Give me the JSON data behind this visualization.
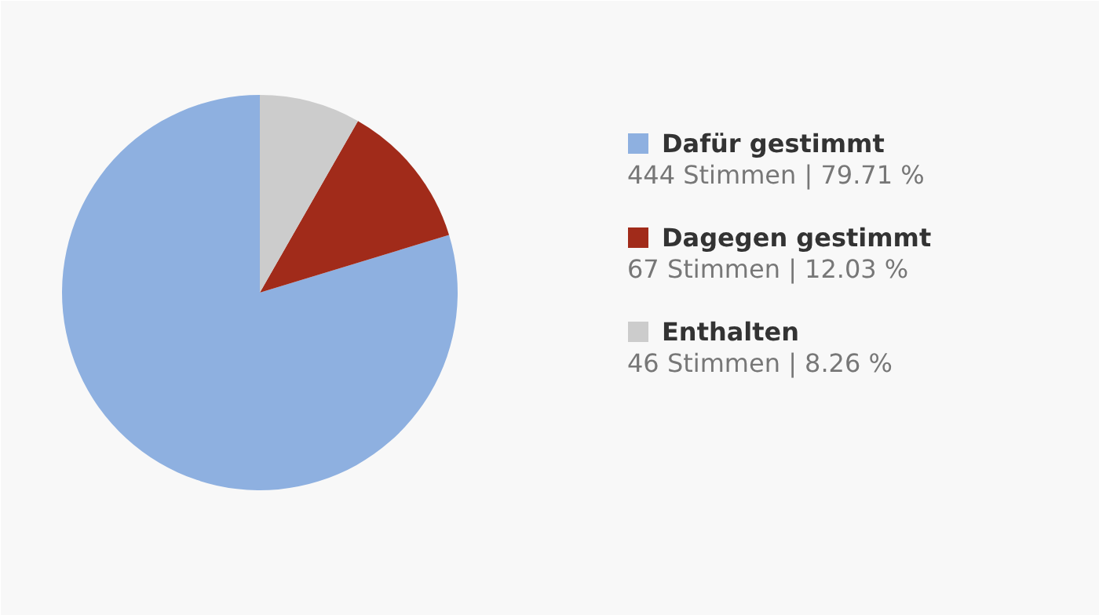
{
  "chart_data": {
    "type": "pie",
    "categories": [
      "Dafür gestimmt",
      "Dagegen gestimmt",
      "Enthalten"
    ],
    "values": [
      444,
      67,
      46
    ],
    "colors": [
      "#8eb0e0",
      "#a12b1a",
      "#cccccc"
    ],
    "value_labels": [
      "444 Stimmen | 79.71 %",
      "67 Stimmen | 12.03 %",
      "46 Stimmen | 8.26 %"
    ],
    "legend": "right"
  }
}
